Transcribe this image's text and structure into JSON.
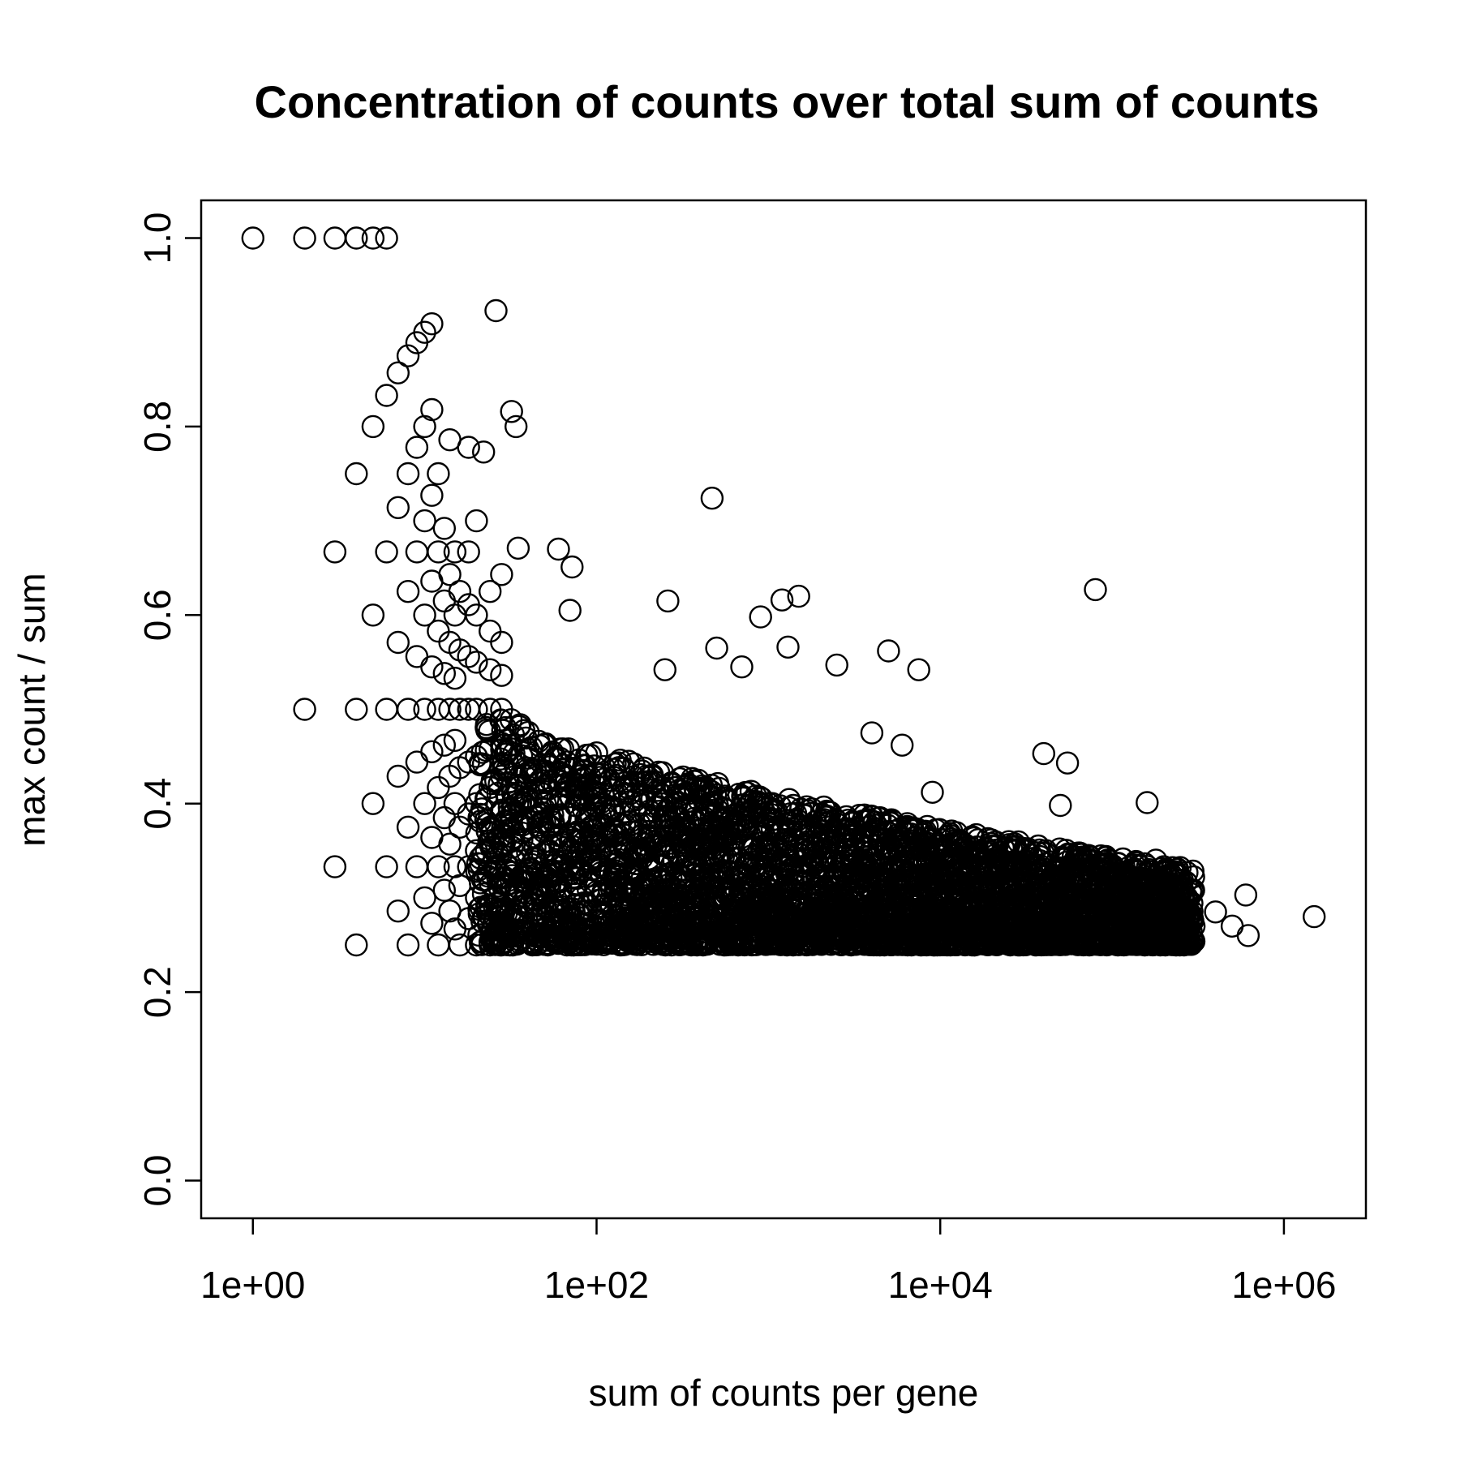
{
  "chart_data": {
    "type": "scatter",
    "title": "Concentration of counts over total sum of counts",
    "xlabel": "sum of counts per gene",
    "ylabel": "max count / sum",
    "x_scale": "log",
    "xlim": [
      0.5,
      3000000
    ],
    "ylim": [
      -0.04,
      1.04
    ],
    "x_ticks": [
      1,
      100,
      10000,
      1000000
    ],
    "x_tick_labels": [
      "1e+00",
      "1e+02",
      "1e+04",
      "1e+06"
    ],
    "y_ticks": [
      0.0,
      0.2,
      0.4,
      0.6,
      0.8,
      1.0
    ],
    "y_tick_labels": [
      "0.0",
      "0.2",
      "0.4",
      "0.6",
      "0.8",
      "1.0"
    ],
    "grid": false,
    "marker": "open-circle",
    "color": "#000000",
    "points": [
      [
        1,
        1.0
      ],
      [
        2,
        1.0
      ],
      [
        3,
        1.0
      ],
      [
        4,
        1.0
      ],
      [
        5,
        1.0
      ],
      [
        6,
        1.0
      ],
      [
        2,
        0.5
      ],
      [
        3,
        0.333
      ],
      [
        3,
        0.667
      ],
      [
        4,
        0.25
      ],
      [
        4,
        0.5
      ],
      [
        4,
        0.75
      ],
      [
        5,
        0.4
      ],
      [
        5,
        0.6
      ],
      [
        5,
        0.8
      ],
      [
        6,
        0.333
      ],
      [
        6,
        0.5
      ],
      [
        6,
        0.667
      ],
      [
        6,
        0.833
      ],
      [
        7,
        0.286
      ],
      [
        7,
        0.429
      ],
      [
        7,
        0.571
      ],
      [
        7,
        0.714
      ],
      [
        7,
        0.857
      ],
      [
        8,
        0.25
      ],
      [
        8,
        0.375
      ],
      [
        8,
        0.5
      ],
      [
        8,
        0.625
      ],
      [
        8,
        0.75
      ],
      [
        8,
        0.875
      ],
      [
        9,
        0.333
      ],
      [
        9,
        0.444
      ],
      [
        9,
        0.556
      ],
      [
        9,
        0.667
      ],
      [
        9,
        0.778
      ],
      [
        9,
        0.889
      ],
      [
        10,
        0.3
      ],
      [
        10,
        0.4
      ],
      [
        10,
        0.5
      ],
      [
        10,
        0.6
      ],
      [
        10,
        0.7
      ],
      [
        10,
        0.8
      ],
      [
        10,
        0.9
      ],
      [
        11,
        0.273
      ],
      [
        11,
        0.364
      ],
      [
        11,
        0.455
      ],
      [
        11,
        0.545
      ],
      [
        11,
        0.636
      ],
      [
        11,
        0.727
      ],
      [
        11,
        0.818
      ],
      [
        11,
        0.909
      ],
      [
        12,
        0.25
      ],
      [
        12,
        0.333
      ],
      [
        12,
        0.417
      ],
      [
        12,
        0.5
      ],
      [
        12,
        0.583
      ],
      [
        12,
        0.667
      ],
      [
        12,
        0.75
      ],
      [
        13,
        0.308
      ],
      [
        13,
        0.385
      ],
      [
        13,
        0.462
      ],
      [
        13,
        0.538
      ],
      [
        13,
        0.615
      ],
      [
        13,
        0.692
      ],
      [
        14,
        0.286
      ],
      [
        14,
        0.357
      ],
      [
        14,
        0.429
      ],
      [
        14,
        0.5
      ],
      [
        14,
        0.571
      ],
      [
        14,
        0.643
      ],
      [
        14,
        0.786
      ],
      [
        15,
        0.267
      ],
      [
        15,
        0.333
      ],
      [
        15,
        0.4
      ],
      [
        15,
        0.467
      ],
      [
        15,
        0.533
      ],
      [
        15,
        0.6
      ],
      [
        15,
        0.667
      ],
      [
        16,
        0.25
      ],
      [
        16,
        0.313
      ],
      [
        16,
        0.375
      ],
      [
        16,
        0.438
      ],
      [
        16,
        0.5
      ],
      [
        16,
        0.563
      ],
      [
        16,
        0.625
      ],
      [
        18,
        0.278
      ],
      [
        18,
        0.333
      ],
      [
        18,
        0.389
      ],
      [
        18,
        0.444
      ],
      [
        18,
        0.5
      ],
      [
        18,
        0.556
      ],
      [
        18,
        0.611
      ],
      [
        18,
        0.667
      ],
      [
        18,
        0.778
      ],
      [
        20,
        0.25
      ],
      [
        20,
        0.3
      ],
      [
        20,
        0.35
      ],
      [
        20,
        0.4
      ],
      [
        20,
        0.45
      ],
      [
        20,
        0.5
      ],
      [
        20,
        0.55
      ],
      [
        20,
        0.6
      ],
      [
        20,
        0.7
      ],
      [
        22,
        0.773
      ],
      [
        24,
        0.25
      ],
      [
        24,
        0.292
      ],
      [
        24,
        0.333
      ],
      [
        24,
        0.375
      ],
      [
        24,
        0.417
      ],
      [
        24,
        0.458
      ],
      [
        24,
        0.5
      ],
      [
        24,
        0.542
      ],
      [
        24,
        0.583
      ],
      [
        24,
        0.625
      ],
      [
        26,
        0.923
      ],
      [
        28,
        0.25
      ],
      [
        28,
        0.286
      ],
      [
        28,
        0.321
      ],
      [
        28,
        0.357
      ],
      [
        28,
        0.393
      ],
      [
        28,
        0.429
      ],
      [
        28,
        0.464
      ],
      [
        28,
        0.5
      ],
      [
        28,
        0.536
      ],
      [
        28,
        0.571
      ],
      [
        28,
        0.643
      ],
      [
        32,
        0.816
      ],
      [
        34,
        0.8
      ],
      [
        35,
        0.671
      ],
      [
        60,
        0.67
      ],
      [
        72,
        0.651
      ],
      [
        70,
        0.605
      ],
      [
        260,
        0.615
      ],
      [
        470,
        0.724
      ],
      [
        900,
        0.598
      ],
      [
        1200,
        0.616
      ],
      [
        1500,
        0.62
      ],
      [
        1300,
        0.566
      ],
      [
        700,
        0.545
      ],
      [
        500,
        0.565
      ],
      [
        250,
        0.542
      ],
      [
        2500,
        0.547
      ],
      [
        5000,
        0.562
      ],
      [
        7500,
        0.542
      ],
      [
        4000,
        0.475
      ],
      [
        6000,
        0.462
      ],
      [
        9000,
        0.412
      ],
      [
        40000,
        0.453
      ],
      [
        55000,
        0.443
      ],
      [
        50000,
        0.398
      ],
      [
        80000,
        0.627
      ],
      [
        160000,
        0.401
      ],
      [
        600000,
        0.303
      ],
      [
        620000,
        0.26
      ],
      [
        1500000,
        0.28
      ],
      [
        180000,
        0.34
      ],
      [
        200000,
        0.32
      ],
      [
        250000,
        0.29
      ],
      [
        300000,
        0.27
      ],
      [
        400000,
        0.285
      ],
      [
        500000,
        0.27
      ]
    ],
    "cluster": {
      "x_range": [
        20,
        300000
      ],
      "y_floor": 0.25,
      "y_peak_at_low_x": 0.52,
      "y_center_at_high_x": 0.28
    }
  }
}
